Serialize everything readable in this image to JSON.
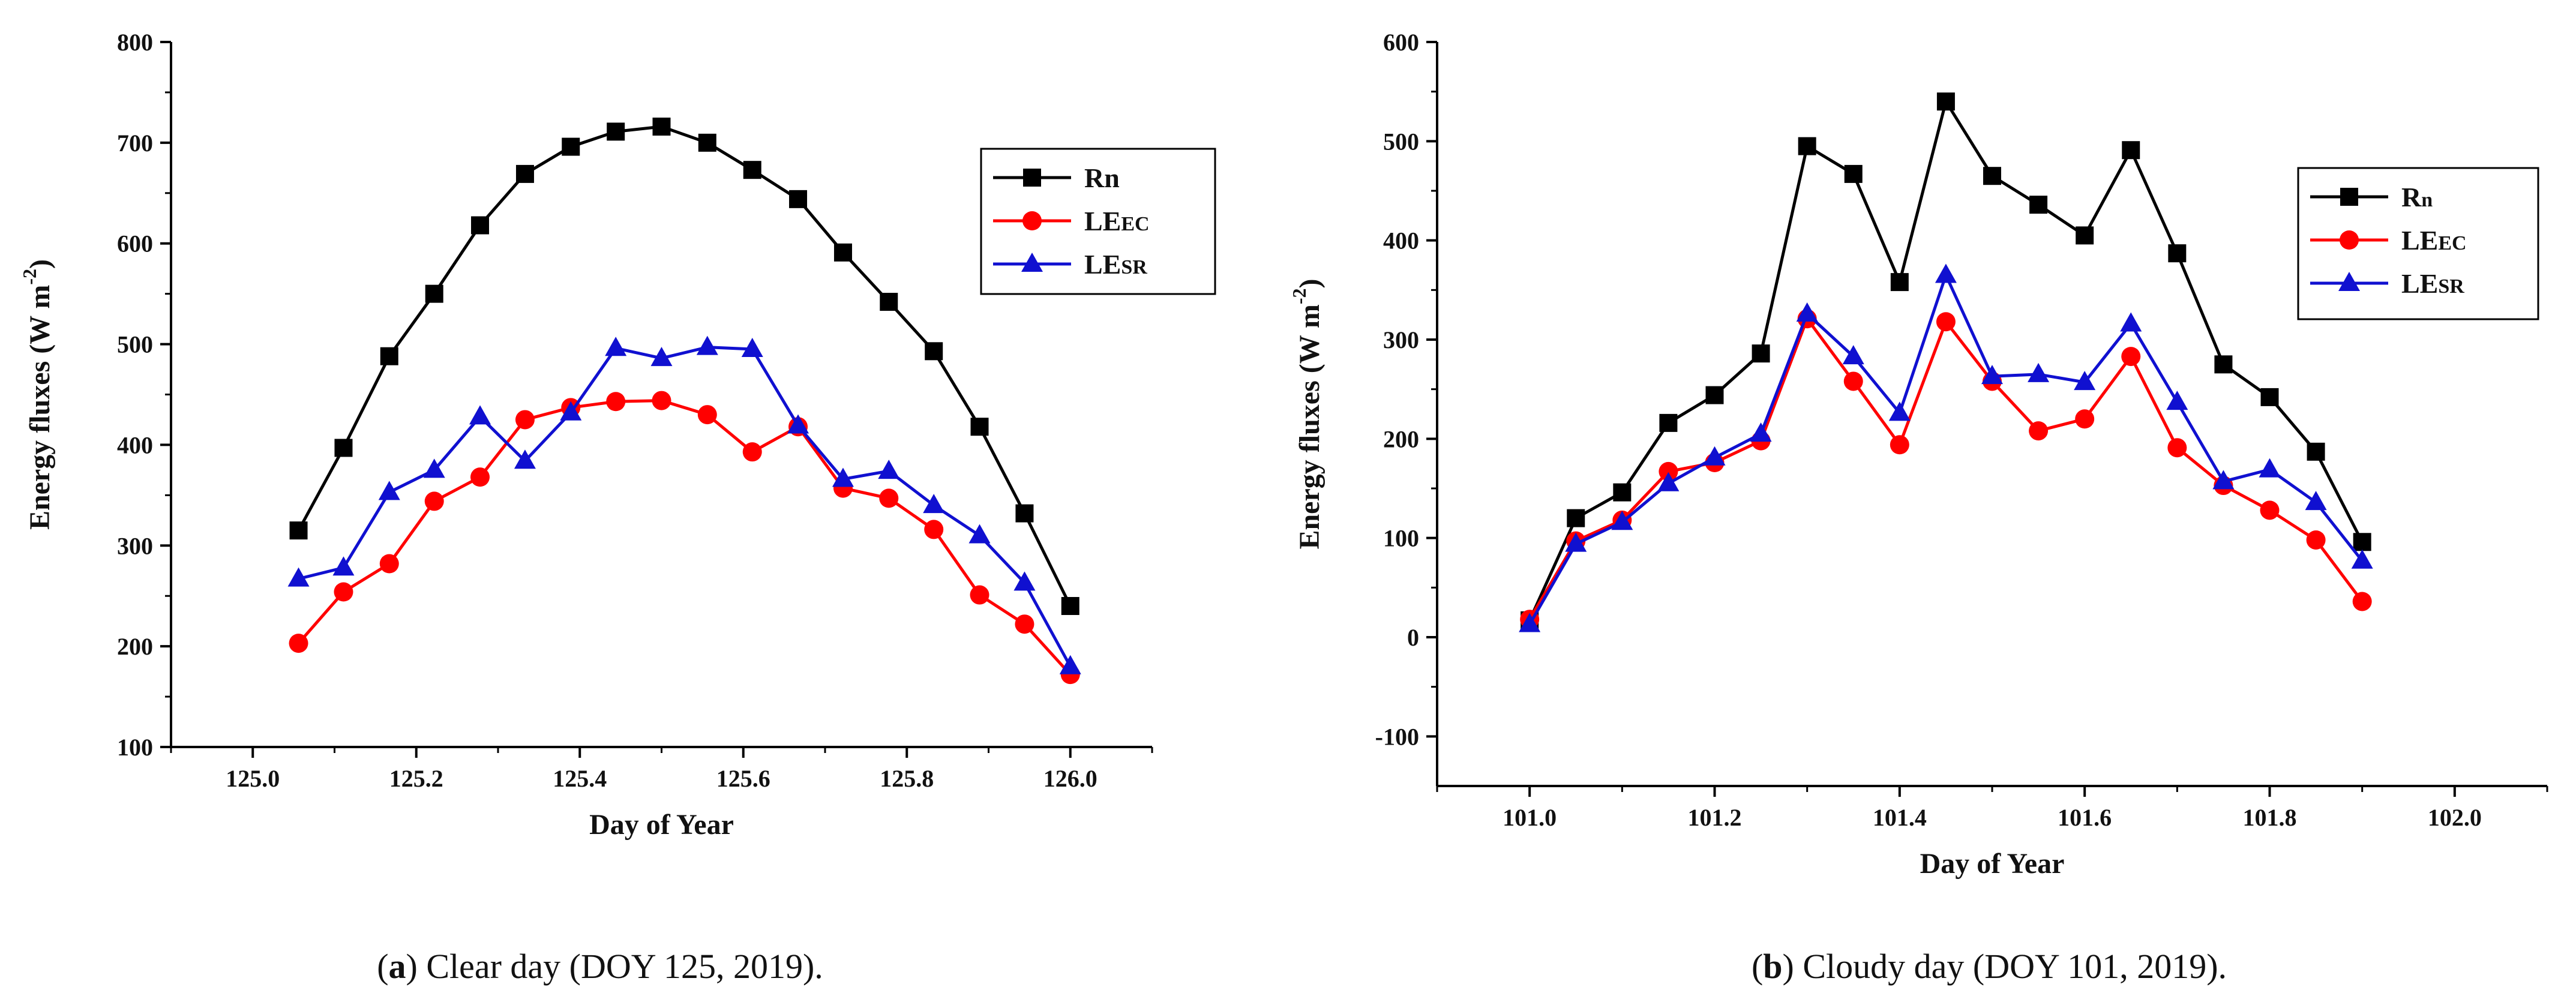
{
  "chart_data": [
    {
      "type": "line",
      "panel": "a",
      "caption": {
        "letter": "a",
        "text": " Clear day (DOY 125, 2019)."
      },
      "xlabel": "Day of Year",
      "ylabel": "Energy fluxes (W m",
      "ylabel_sup": "-2",
      "ylabel_end": ")",
      "xlim": [
        124.9,
        126.1
      ],
      "ylim": [
        100,
        800
      ],
      "xticks": [
        125.0,
        125.2,
        125.4,
        125.6,
        125.8,
        126.0
      ],
      "xtick_labels": [
        "125.0",
        "125.2",
        "125.4",
        "125.6",
        "125.8",
        "126.0"
      ],
      "yticks": [
        100,
        200,
        300,
        400,
        500,
        600,
        700,
        800
      ],
      "ytick_labels": [
        "100",
        "200",
        "300",
        "400",
        "500",
        "600",
        "700",
        "800"
      ],
      "legend_position": "top-right",
      "x": [
        125.056,
        125.111,
        125.167,
        125.222,
        125.278,
        125.333,
        125.389,
        125.444,
        125.5,
        125.556,
        125.611,
        125.667,
        125.722,
        125.778,
        125.833,
        125.889,
        125.944,
        126.0
      ],
      "series": [
        {
          "name": "Rn",
          "legend_main": "Rn",
          "legend_sub": "",
          "color": "#000000",
          "marker": "square",
          "values": [
            315,
            397,
            488,
            550,
            618,
            669,
            696,
            711,
            716,
            700,
            673,
            644,
            591,
            542,
            493,
            418,
            332,
            240
          ]
        },
        {
          "name": "LEEC",
          "legend_main": "LE",
          "legend_sub": "EC",
          "color": "#ff0000",
          "marker": "circle",
          "values": [
            203,
            254,
            282,
            344,
            368,
            425,
            437,
            443,
            444,
            430,
            393,
            418,
            357,
            347,
            316,
            251,
            222,
            172
          ]
        },
        {
          "name": "LESR",
          "legend_main": "LE",
          "legend_sub": "SR",
          "color": "#1010d0",
          "marker": "triangle",
          "values": [
            267,
            278,
            353,
            375,
            428,
            384,
            432,
            496,
            486,
            497,
            495,
            419,
            366,
            374,
            340,
            310,
            263,
            180
          ]
        }
      ]
    },
    {
      "type": "line",
      "panel": "b",
      "caption": {
        "letter": "b",
        "text": " Cloudy day (DOY 101, 2019)."
      },
      "xlabel": "Day of Year",
      "ylabel": "Energy fluxes (W m",
      "ylabel_sup": "-2",
      "ylabel_end": ")",
      "xlim": [
        100.9,
        102.1
      ],
      "ylim": [
        -150,
        600
      ],
      "xticks": [
        101.0,
        101.2,
        101.4,
        101.6,
        101.8,
        102.0
      ],
      "xtick_labels": [
        "101.0",
        "101.2",
        "101.4",
        "101.6",
        "101.8",
        "102.0"
      ],
      "yticks": [
        -100,
        0,
        100,
        200,
        300,
        400,
        500,
        600
      ],
      "ytick_labels": [
        "-100",
        "0",
        "100",
        "200",
        "300",
        "400",
        "500",
        "600"
      ],
      "legend_position": "top-right",
      "x": [
        101.0,
        101.05,
        101.1,
        101.15,
        101.2,
        101.25,
        101.3,
        101.35,
        101.4,
        101.45,
        101.5,
        101.55,
        101.6,
        101.65,
        101.7,
        101.75,
        101.8,
        101.85,
        101.9
      ],
      "series": [
        {
          "name": "Rn",
          "legend_main": "R",
          "legend_sub": "n",
          "color": "#000000",
          "marker": "square",
          "values": [
            17,
            120,
            146,
            216,
            244,
            286,
            495,
            467,
            358,
            540,
            465,
            436,
            405,
            491,
            387,
            275,
            242,
            187,
            96
          ]
        },
        {
          "name": "LEEC",
          "legend_main": "LE",
          "legend_sub": "EC",
          "color": "#ff0000",
          "marker": "circle",
          "values": [
            18,
            97,
            118,
            167,
            176,
            198,
            321,
            258,
            194,
            318,
            258,
            208,
            220,
            283,
            191,
            153,
            128,
            98,
            36
          ]
        },
        {
          "name": "LESR",
          "legend_main": "LE",
          "legend_sub": "SR",
          "color": "#1010d0",
          "marker": "triangle",
          "values": [
            13,
            94,
            116,
            155,
            181,
            205,
            326,
            283,
            226,
            365,
            263,
            265,
            257,
            316,
            237,
            157,
            169,
            136,
            77
          ]
        }
      ]
    }
  ]
}
